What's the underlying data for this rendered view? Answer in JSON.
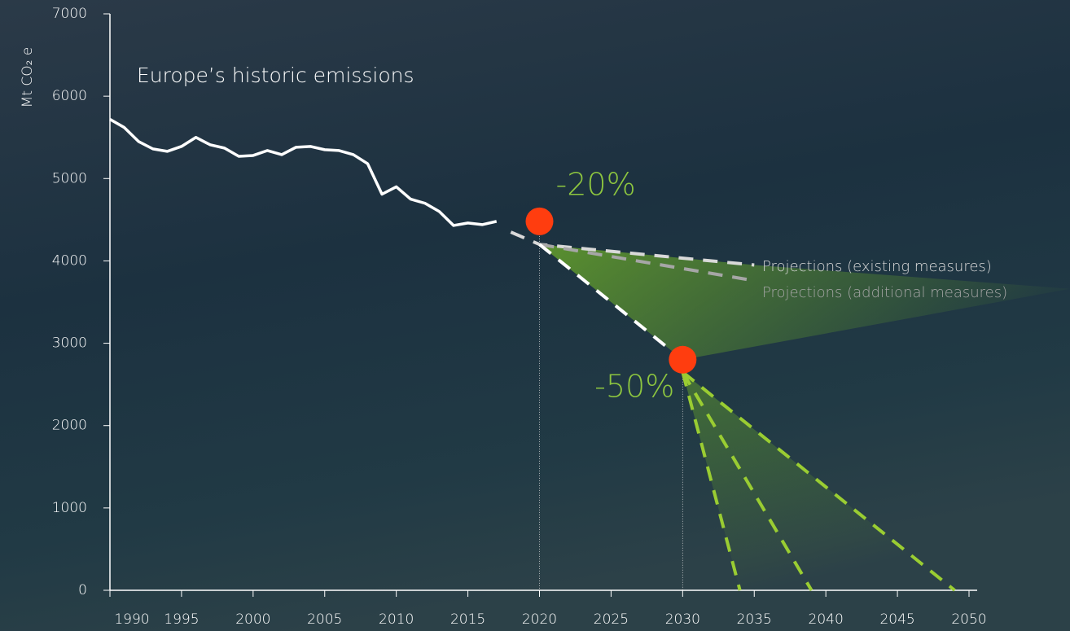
{
  "chart_data": {
    "type": "line",
    "y_label": "Mt CO₂ e",
    "xlim": [
      1990,
      2050
    ],
    "xticks": [
      1990,
      1995,
      2000,
      2005,
      2010,
      2015,
      2020,
      2025,
      2030,
      2035,
      2040,
      2045,
      2050
    ],
    "ylim": [
      0,
      7000
    ],
    "yticks": [
      0,
      1000,
      2000,
      3000,
      4000,
      5000,
      6000,
      7000
    ],
    "series": [
      {
        "name": "Europe’s historic emissions",
        "color": "#ffffff",
        "dashed": false,
        "x": [
          1990,
          1991,
          1992,
          1993,
          1994,
          1995,
          1996,
          1997,
          1998,
          1999,
          2000,
          2001,
          2002,
          2003,
          2004,
          2005,
          2006,
          2007,
          2008,
          2009,
          2010,
          2011,
          2012,
          2013,
          2014,
          2015,
          2016,
          2017
        ],
        "values": [
          5720,
          5620,
          5450,
          5360,
          5330,
          5390,
          5500,
          5410,
          5370,
          5270,
          5280,
          5340,
          5290,
          5380,
          5390,
          5350,
          5340,
          5290,
          5180,
          4810,
          4900,
          4750,
          4700,
          4600,
          4430,
          4460,
          4440,
          4480
        ]
      },
      {
        "name": "Projections (existing measures)",
        "color": "#d9d9d9",
        "dashed": true,
        "x": [
          2018,
          2020,
          2035
        ],
        "values": [
          4350,
          4200,
          3950
        ]
      },
      {
        "name": "Projections (additional measures)",
        "color": "#a6a6a6",
        "dashed": true,
        "x": [
          2020,
          2035
        ],
        "values": [
          4200,
          3760
        ]
      },
      {
        "color": "#ffffff",
        "dashed": true,
        "x": [
          2020,
          2030
        ],
        "values": [
          4200,
          2800
        ]
      },
      {
        "color": "#9acd32",
        "dashed": true,
        "x": [
          2030,
          2034
        ],
        "values": [
          2650,
          0
        ]
      },
      {
        "color": "#9acd32",
        "dashed": true,
        "x": [
          2030,
          2039
        ],
        "values": [
          2650,
          0
        ]
      },
      {
        "color": "#9acd32",
        "dashed": true,
        "x": [
          2030,
          2049
        ],
        "values": [
          2650,
          0
        ]
      }
    ],
    "targets": {
      "color": "#ff3d0f",
      "label_color": "#8dc63f",
      "x": [
        2020,
        2030
      ],
      "values": [
        4480,
        2800
      ],
      "labels": [
        "-20%",
        "-50%"
      ]
    }
  }
}
